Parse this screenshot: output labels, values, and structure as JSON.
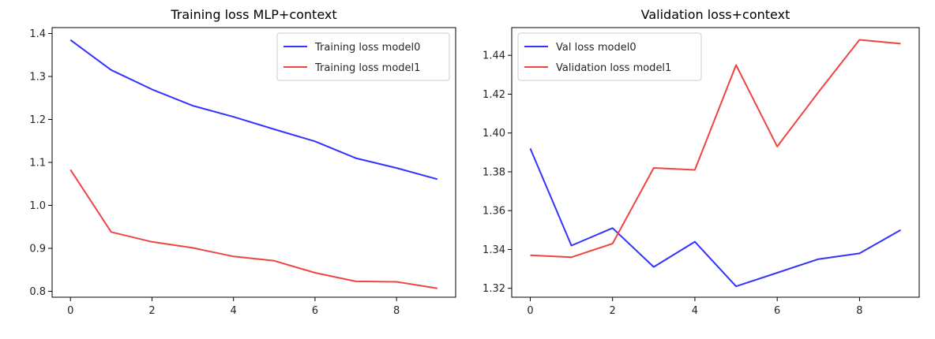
{
  "chart_data": [
    {
      "type": "line",
      "title": "Training loss MLP+context",
      "xlabel": "",
      "ylabel": "",
      "xlim": [
        -0.45,
        9.45
      ],
      "ylim": [
        0.7862,
        1.4138
      ],
      "xticks": [
        0,
        2,
        4,
        6,
        8
      ],
      "yticks": [
        0.8,
        0.9,
        1.0,
        1.1,
        1.2,
        1.3,
        1.4
      ],
      "ytick_format": 1,
      "grid": false,
      "legend_position": "top-right",
      "x": [
        0,
        1,
        2,
        3,
        4,
        5,
        6,
        7,
        8,
        9
      ],
      "series": [
        {
          "name": "Training loss model0",
          "color": "#3333ff",
          "values": [
            1.385,
            1.315,
            1.27,
            1.232,
            1.206,
            1.177,
            1.149,
            1.11,
            1.087,
            1.061
          ]
        },
        {
          "name": "Training loss model1",
          "color": "#ee4444",
          "values": [
            1.083,
            0.938,
            0.915,
            0.901,
            0.881,
            0.871,
            0.843,
            0.823,
            0.822,
            0.807
          ]
        }
      ]
    },
    {
      "type": "line",
      "title": "Validation loss+context",
      "xlabel": "",
      "ylabel": "",
      "xlim": [
        -0.45,
        9.45
      ],
      "ylim": [
        1.3154,
        1.4543
      ],
      "xticks": [
        0,
        2,
        4,
        6,
        8
      ],
      "yticks": [
        1.32,
        1.34,
        1.36,
        1.38,
        1.4,
        1.42,
        1.44
      ],
      "ytick_format": 2,
      "grid": false,
      "legend_position": "top-left",
      "x": [
        0,
        1,
        2,
        3,
        4,
        5,
        6,
        7,
        8,
        9
      ],
      "series": [
        {
          "name": "Val loss model0",
          "color": "#3333ff",
          "values": [
            1.392,
            1.342,
            1.351,
            1.331,
            1.344,
            1.321,
            1.328,
            1.335,
            1.338,
            1.35
          ]
        },
        {
          "name": "Validation loss model1",
          "color": "#ee4444",
          "values": [
            1.337,
            1.336,
            1.343,
            1.382,
            1.381,
            1.435,
            1.393,
            1.421,
            1.448,
            1.446
          ]
        }
      ]
    }
  ]
}
